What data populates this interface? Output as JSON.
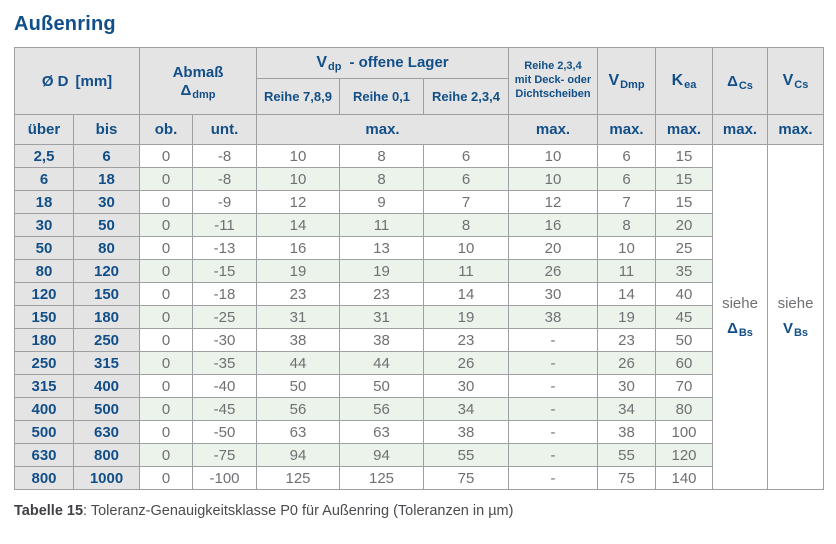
{
  "title": "Außenring",
  "header": {
    "d_label": "Ø D",
    "d_unit": "[mm]",
    "abmass_label": "Abmaß",
    "abmass_symbol": "Δ",
    "abmass_sub": "dmp",
    "vdp_symbol": "V",
    "vdp_sub": "dp",
    "vdp_rest": "-  offene Lager",
    "reihe_789": "Reihe 7,8,9",
    "reihe_01": "Reihe 0,1",
    "reihe_234": "Reihe 2,3,4",
    "sealed_line1": "Reihe 2,3,4",
    "sealed_line2": "mit Deck- oder",
    "sealed_line3": "Dichtscheiben",
    "vdmp_symbol": "V",
    "vdmp_sub": "Dmp",
    "kea_symbol": "K",
    "kea_sub": "ea",
    "delta_cs_symbol": "Δ",
    "delta_cs_sub": "Cs",
    "v_cs_symbol": "V",
    "v_cs_sub": "Cs",
    "ueber": "über",
    "bis": "bis",
    "ob": "ob.",
    "unt": "unt.",
    "max": "max."
  },
  "span_cells": {
    "dcs_note": "siehe",
    "dcs_sym": "Δ",
    "dcs_sub": "Bs",
    "vcs_note": "siehe",
    "vcs_sym": "V",
    "vcs_sub": "Bs"
  },
  "rows": [
    {
      "ueber": "2,5",
      "bis": "6",
      "ob": "0",
      "unt": "-8",
      "r789": "10",
      "r01": "8",
      "r234": "6",
      "sealed": "10",
      "vdmp": "6",
      "kea": "15"
    },
    {
      "ueber": "6",
      "bis": "18",
      "ob": "0",
      "unt": "-8",
      "r789": "10",
      "r01": "8",
      "r234": "6",
      "sealed": "10",
      "vdmp": "6",
      "kea": "15"
    },
    {
      "ueber": "18",
      "bis": "30",
      "ob": "0",
      "unt": "-9",
      "r789": "12",
      "r01": "9",
      "r234": "7",
      "sealed": "12",
      "vdmp": "7",
      "kea": "15"
    },
    {
      "ueber": "30",
      "bis": "50",
      "ob": "0",
      "unt": "-11",
      "r789": "14",
      "r01": "11",
      "r234": "8",
      "sealed": "16",
      "vdmp": "8",
      "kea": "20"
    },
    {
      "ueber": "50",
      "bis": "80",
      "ob": "0",
      "unt": "-13",
      "r789": "16",
      "r01": "13",
      "r234": "10",
      "sealed": "20",
      "vdmp": "10",
      "kea": "25"
    },
    {
      "ueber": "80",
      "bis": "120",
      "ob": "0",
      "unt": "-15",
      "r789": "19",
      "r01": "19",
      "r234": "11",
      "sealed": "26",
      "vdmp": "11",
      "kea": "35"
    },
    {
      "ueber": "120",
      "bis": "150",
      "ob": "0",
      "unt": "-18",
      "r789": "23",
      "r01": "23",
      "r234": "14",
      "sealed": "30",
      "vdmp": "14",
      "kea": "40"
    },
    {
      "ueber": "150",
      "bis": "180",
      "ob": "0",
      "unt": "-25",
      "r789": "31",
      "r01": "31",
      "r234": "19",
      "sealed": "38",
      "vdmp": "19",
      "kea": "45"
    },
    {
      "ueber": "180",
      "bis": "250",
      "ob": "0",
      "unt": "-30",
      "r789": "38",
      "r01": "38",
      "r234": "23",
      "sealed": "-",
      "vdmp": "23",
      "kea": "50"
    },
    {
      "ueber": "250",
      "bis": "315",
      "ob": "0",
      "unt": "-35",
      "r789": "44",
      "r01": "44",
      "r234": "26",
      "sealed": "-",
      "vdmp": "26",
      "kea": "60"
    },
    {
      "ueber": "315",
      "bis": "400",
      "ob": "0",
      "unt": "-40",
      "r789": "50",
      "r01": "50",
      "r234": "30",
      "sealed": "-",
      "vdmp": "30",
      "kea": "70"
    },
    {
      "ueber": "400",
      "bis": "500",
      "ob": "0",
      "unt": "-45",
      "r789": "56",
      "r01": "56",
      "r234": "34",
      "sealed": "-",
      "vdmp": "34",
      "kea": "80"
    },
    {
      "ueber": "500",
      "bis": "630",
      "ob": "0",
      "unt": "-50",
      "r789": "63",
      "r01": "63",
      "r234": "38",
      "sealed": "-",
      "vdmp": "38",
      "kea": "100"
    },
    {
      "ueber": "630",
      "bis": "800",
      "ob": "0",
      "unt": "-75",
      "r789": "94",
      "r01": "94",
      "r234": "55",
      "sealed": "-",
      "vdmp": "55",
      "kea": "120"
    },
    {
      "ueber": "800",
      "bis": "1000",
      "ob": "0",
      "unt": "-100",
      "r789": "125",
      "r01": "125",
      "r234": "75",
      "sealed": "-",
      "vdmp": "75",
      "kea": "140"
    }
  ],
  "caption": {
    "label": "Tabelle 15",
    "text": ": Toleranz-Genauigkeitsklasse P0 für Außenring (Toleranzen in µm)"
  },
  "colors": {
    "accent_blue": "#124f88",
    "header_gray": "#e4e4e5",
    "row_green": "#ebf3ea",
    "data_text": "#6e7073",
    "border": "#9da0a3"
  }
}
